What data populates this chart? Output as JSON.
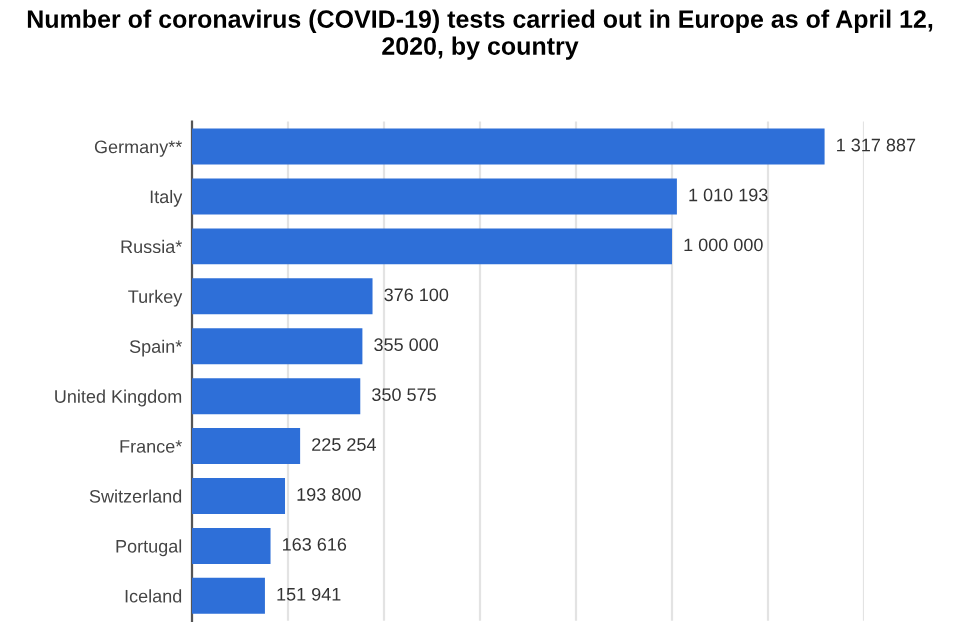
{
  "chart_data": {
    "type": "bar",
    "orientation": "horizontal",
    "title": "Number of coronavirus (COVID-19) tests carried out in Europe as of April 12, 2020, by country",
    "categories": [
      "Germany**",
      "Italy",
      "Russia*",
      "Turkey",
      "Spain*",
      "United Kingdom",
      "France*",
      "Switzerland",
      "Portugal",
      "Iceland"
    ],
    "values": [
      1317887,
      1010193,
      1000000,
      376100,
      355000,
      350575,
      225254,
      193800,
      163616,
      151941
    ],
    "value_labels": [
      "1 317 887",
      "1 010 193",
      "1 000 000",
      "376 100",
      "355 000",
      "350 575",
      "225 254",
      "193 800",
      "163 616",
      "151 941"
    ],
    "color": "#2e6fd8",
    "xticks": [
      {
        "value": 0,
        "label": null
      },
      {
        "value": 200000,
        "label": null
      },
      {
        "value": 400000,
        "label": null
      },
      {
        "value": 600000,
        "label": null
      },
      {
        "value": 800000,
        "label": null
      },
      {
        "value": 1000000,
        "label": null
      },
      {
        "value": 1200000,
        "label": null
      },
      {
        "value": 1400000,
        "label": null
      }
    ],
    "grid": "x",
    "legend": false
  }
}
